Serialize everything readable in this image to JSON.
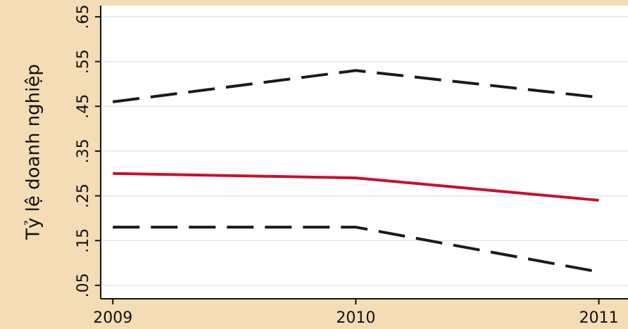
{
  "chart_data": {
    "type": "line",
    "y_label": "Tỷ lệ doanh nghiệp",
    "x": [
      2009,
      2010,
      2011
    ],
    "series": [
      {
        "color": "#1a1a1a",
        "style": "dashed",
        "values": [
          0.46,
          0.53,
          0.47
        ]
      },
      {
        "color": "#c8102e",
        "style": "solid",
        "values": [
          0.3,
          0.29,
          0.24
        ]
      },
      {
        "color": "#1a1a1a",
        "style": "dashed",
        "values": [
          0.18,
          0.18,
          0.08
        ]
      }
    ],
    "xlim": [
      2008.95,
      2011.12
    ],
    "xticks": [
      2009,
      2010,
      2011
    ],
    "ylim": [
      0.02,
      0.675
    ],
    "yticks": [
      {
        "value": 0.05,
        "label": ".05"
      },
      {
        "value": 0.15,
        "label": ".15"
      },
      {
        "value": 0.25,
        "label": ".25"
      },
      {
        "value": 0.35,
        "label": ".35"
      },
      {
        "value": 0.45,
        "label": ".45"
      },
      {
        "value": 0.55,
        "label": ".55"
      },
      {
        "value": 0.65,
        "label": ".65"
      }
    ],
    "grid": true
  }
}
